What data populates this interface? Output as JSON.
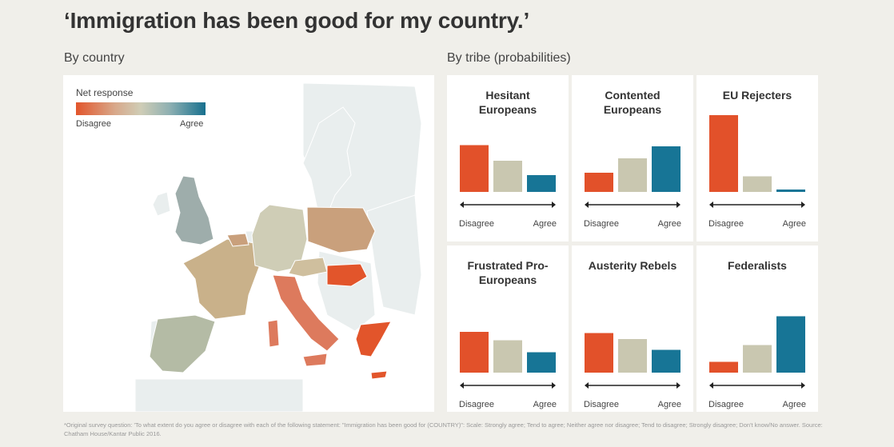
{
  "title": "‘Immigration has been good for my country.’",
  "sections": {
    "by_country": "By country",
    "by_tribe": "By tribe (probabilities)"
  },
  "legend": {
    "title": "Net response",
    "low_label": "Disagree",
    "high_label": "Agree",
    "colors": [
      "#e2552b",
      "#cfcdb6",
      "#17708e"
    ]
  },
  "colors": {
    "disagree": "#e2512a",
    "neutral": "#c9c7b0",
    "agree": "#177596",
    "map_background": "#e9eeee"
  },
  "chart_data": {
    "type": "bar",
    "categories": [
      "Disagree",
      "Neutral",
      "Agree"
    ],
    "axis_labels": {
      "low": "Disagree",
      "high": "Agree"
    },
    "ylim": [
      0,
      0.6
    ],
    "tribes": [
      {
        "name": "Hesitant Europeans",
        "values": [
          0.39,
          0.26,
          0.14
        ]
      },
      {
        "name": "Contented Europeans",
        "values": [
          0.16,
          0.28,
          0.38
        ]
      },
      {
        "name": "EU Rejecters",
        "values": [
          0.64,
          0.13,
          0.02
        ]
      },
      {
        "name": "Frustrated Pro-Europeans",
        "values": [
          0.34,
          0.27,
          0.17
        ]
      },
      {
        "name": "Austerity Rebels",
        "values": [
          0.33,
          0.28,
          0.19
        ]
      },
      {
        "name": "Federalists",
        "values": [
          0.09,
          0.23,
          0.47
        ]
      }
    ]
  },
  "footnote": "*Original survey question: 'To what extent do you agree or disagree with each of the following statement: \"Immigration has been good for (COUNTRY)\": Scale: Strongly agree; Tend to agree; Neither agree nor disagree; Tend to disagree; Strongly disagree; Don't know/No answer. Source: Chatham House/Kantar Public 2016."
}
